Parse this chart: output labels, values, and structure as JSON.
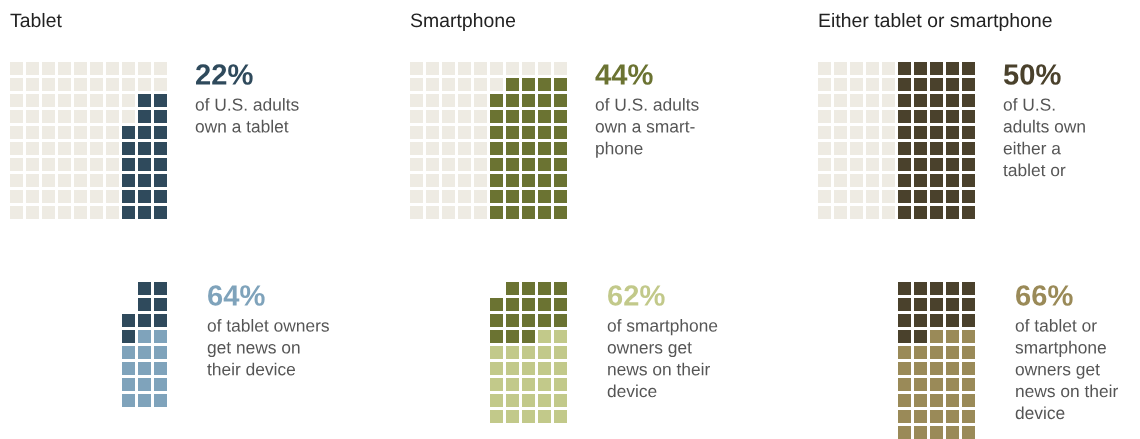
{
  "chart_data": [
    {
      "type": "other",
      "title": "Tablet",
      "values": [
        22,
        64
      ],
      "value_labels": [
        "22%",
        "64%"
      ],
      "colors": [
        "#2f4a5c",
        "#7fa3bb"
      ],
      "annotations": [
        "of U.S. adults\nown a tablet",
        "of tablet owners\nget news on\ntheir device"
      ]
    },
    {
      "type": "other",
      "title": "Smartphone",
      "values": [
        44,
        62
      ],
      "value_labels": [
        "44%",
        "62%"
      ],
      "colors": [
        "#6b7332",
        "#c2c98a"
      ],
      "annotations": [
        "of U.S. adults\nown a smart-\nphone",
        "of smartphone\nowners get\nnews on their\ndevice"
      ]
    },
    {
      "type": "other",
      "title": "Either tablet or smartphone",
      "values": [
        50,
        66
      ],
      "value_labels": [
        "50%",
        "66%"
      ],
      "colors": [
        "#4a412c",
        "#9a8a58"
      ],
      "annotations": [
        "of U.S.\nadults own\neither a\ntablet or",
        "of tablet or\nsmartphone\nowners get\nnews on their\ndevice"
      ]
    }
  ]
}
